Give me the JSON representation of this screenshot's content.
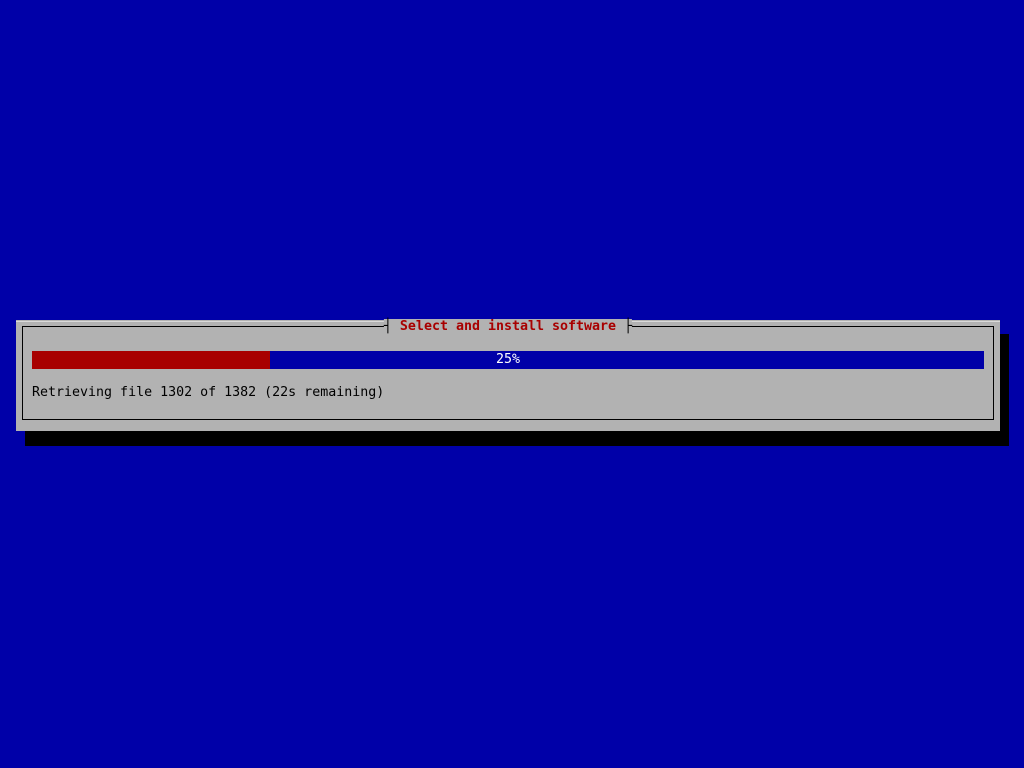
{
  "screen": {
    "background_color": "#0000a8"
  },
  "dialog": {
    "title": "Select and install software",
    "title_color": "#a80000",
    "background_color": "#b2b2b2",
    "border_tick_left": "┤",
    "border_tick_right": "├",
    "progress_bar": {
      "percent": 25,
      "percent_label": "25%",
      "fill_width_css": "25%",
      "fill_color": "#a80000",
      "track_color": "#0000a8",
      "label_color": "#ffffff"
    },
    "status_text": "Retrieving file 1302 of 1382 (22s remaining)"
  }
}
